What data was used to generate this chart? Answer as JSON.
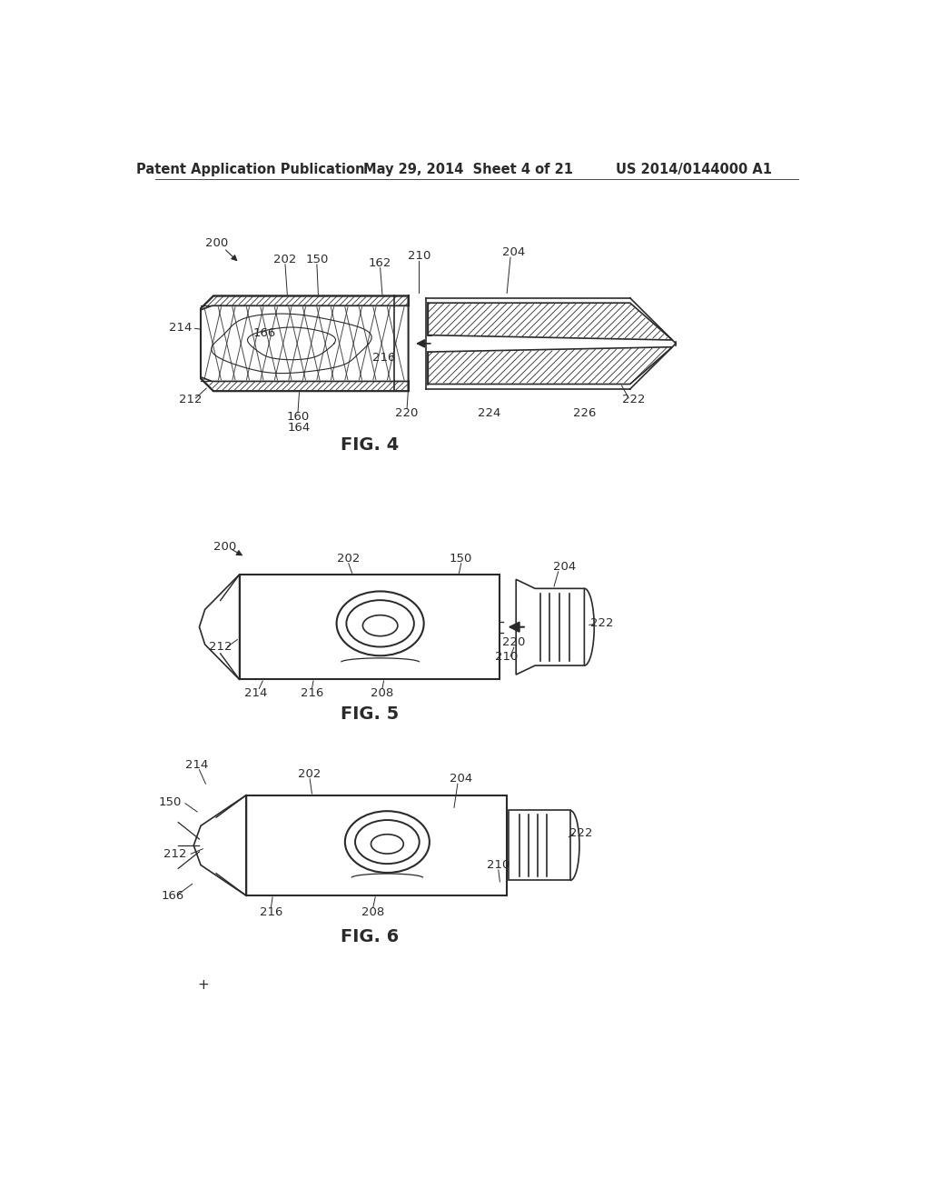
{
  "bg_color": "#ffffff",
  "line_color": "#2a2a2a",
  "header_line1": "Patent Application Publication",
  "header_line2": "May 29, 2014  Sheet 4 of 21",
  "header_line3": "US 2014/0144000 A1",
  "fig4_label": "FIG. 4",
  "fig5_label": "FIG. 5",
  "fig6_label": "FIG. 6",
  "font_size_header": 10.5,
  "font_size_label": 14,
  "font_size_ref": 9.5
}
